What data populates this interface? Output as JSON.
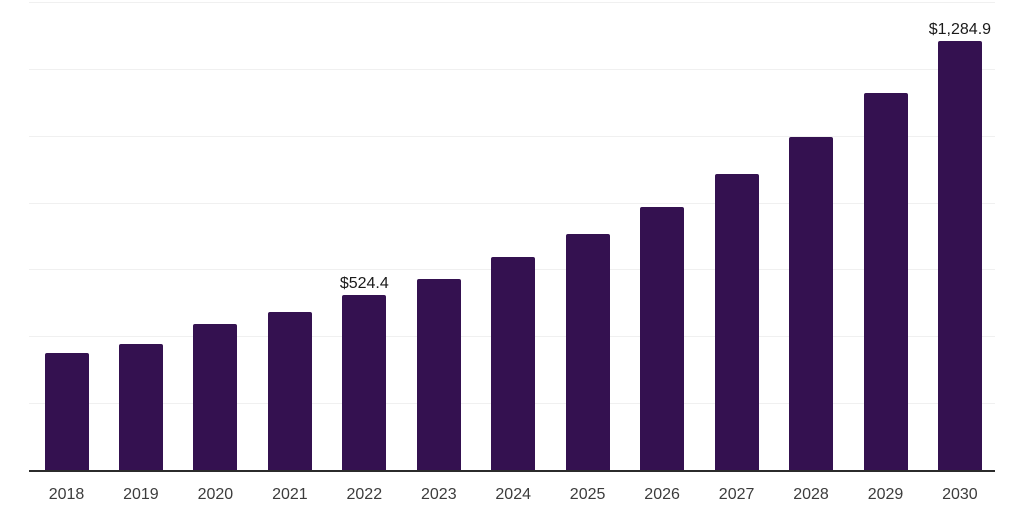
{
  "chart_data": {
    "type": "bar",
    "title": "",
    "xlabel": "",
    "ylabel": "",
    "categories": [
      "2018",
      "2019",
      "2020",
      "2021",
      "2022",
      "2023",
      "2024",
      "2025",
      "2026",
      "2027",
      "2028",
      "2029",
      "2030"
    ],
    "values": [
      349,
      376,
      436,
      473,
      524.4,
      573,
      636,
      707,
      787,
      886,
      997,
      1128,
      1284.9
    ],
    "ylim": [
      0,
      1400
    ],
    "gridline_step": 200,
    "grid": "horizontal-only",
    "legend": "none",
    "y_tick_labels_visible": false,
    "data_labels": [
      {
        "category": "2022",
        "text": "$524.4"
      },
      {
        "category": "2030",
        "text": "$1,284.9"
      }
    ],
    "colors": {
      "bar": "#341150",
      "gridline": "#f0f0f0",
      "axis_line": "#2b2b2b",
      "value_label_text": "#1a1a1a",
      "tick_label_text": "#3c3c3c",
      "background": "#ffffff"
    }
  }
}
